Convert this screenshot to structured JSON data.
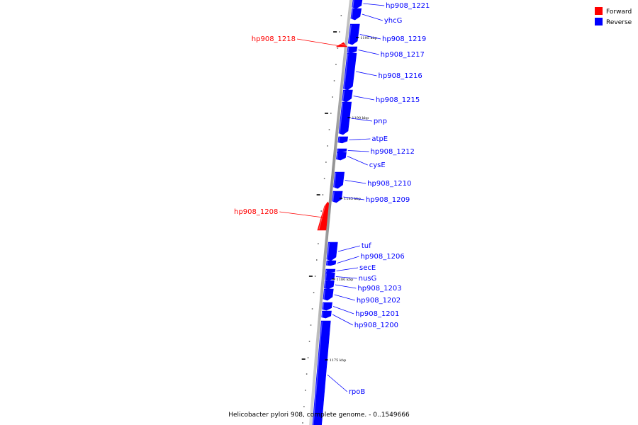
{
  "caption": "Helicobacter pylori 908, complete genome. - 0..1549666",
  "colors": {
    "forward": "#ff0000",
    "reverse": "#0000ff",
    "backbone": "#9a9a9a"
  },
  "legend": [
    {
      "label": "Forward",
      "color": "#ff0000"
    },
    {
      "label": "Reverse",
      "color": "#0000ff"
    }
  ],
  "kbp_labels": [
    {
      "text": "1195 kbp",
      "kbp": 1195
    },
    {
      "text": "1190 kbp",
      "kbp": 1190
    },
    {
      "text": "1185 kbp",
      "kbp": 1185
    },
    {
      "text": "1180 kbp",
      "kbp": 1180
    },
    {
      "text": "1175 kbp",
      "kbp": 1175
    }
  ],
  "genes": [
    {
      "name": "hp908_1221",
      "strand": "reverse"
    },
    {
      "name": "yhcG",
      "strand": "reverse"
    },
    {
      "name": "hp908_1219",
      "strand": "reverse"
    },
    {
      "name": "hp908_1218",
      "strand": "forward"
    },
    {
      "name": "hp908_1217",
      "strand": "reverse"
    },
    {
      "name": "hp908_1216",
      "strand": "reverse"
    },
    {
      "name": "hp908_1215",
      "strand": "reverse"
    },
    {
      "name": "pnp",
      "strand": "reverse"
    },
    {
      "name": "atpE",
      "strand": "reverse"
    },
    {
      "name": "hp908_1212",
      "strand": "reverse"
    },
    {
      "name": "cysE",
      "strand": "reverse"
    },
    {
      "name": "hp908_1210",
      "strand": "reverse"
    },
    {
      "name": "hp908_1209",
      "strand": "reverse"
    },
    {
      "name": "hp908_1208",
      "strand": "forward"
    },
    {
      "name": "tuf",
      "strand": "reverse"
    },
    {
      "name": "hp908_1206",
      "strand": "reverse"
    },
    {
      "name": "secE",
      "strand": "reverse"
    },
    {
      "name": "nusG",
      "strand": "reverse"
    },
    {
      "name": "hp908_1203",
      "strand": "reverse"
    },
    {
      "name": "hp908_1202",
      "strand": "reverse"
    },
    {
      "name": "hp908_1201",
      "strand": "reverse"
    },
    {
      "name": "hp908_1200",
      "strand": "reverse"
    },
    {
      "name": "rpoB",
      "strand": "reverse"
    }
  ]
}
